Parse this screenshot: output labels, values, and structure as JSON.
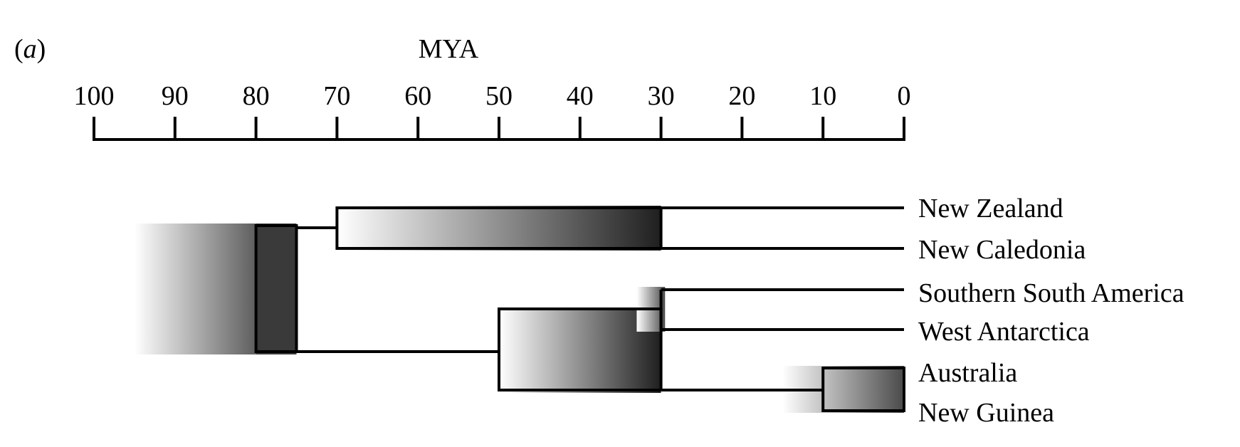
{
  "panel_label_open": "(",
  "panel_label_letter": "a",
  "panel_label_close": ")",
  "axis": {
    "title": "MYA",
    "ticks": [
      100,
      90,
      80,
      70,
      60,
      50,
      40,
      30,
      20,
      10,
      0
    ],
    "range": [
      100,
      0
    ]
  },
  "taxa": [
    "New Zealand",
    "New Caledonia",
    "Southern South America",
    "West Antarctica",
    "Australia",
    "New Guinea"
  ],
  "tree": {
    "root": {
      "age": 80,
      "ci_outer": [
        95,
        80
      ],
      "ci_inner": [
        80,
        75
      ]
    },
    "nodes": [
      {
        "id": "nz_nc",
        "age": 70,
        "ci": [
          70,
          30
        ],
        "children": [
          "New Zealand",
          "New Caledonia"
        ]
      },
      {
        "id": "ssa_wa",
        "age": 30,
        "ci": [
          33,
          29.5
        ],
        "children": [
          "Southern South America",
          "West Antarctica"
        ]
      },
      {
        "id": "aus_ng",
        "age": 10,
        "ci": [
          15,
          0
        ],
        "children": [
          "Australia",
          "New Guinea"
        ]
      },
      {
        "id": "southern",
        "age": 50,
        "ci": [
          50,
          30
        ],
        "children": [
          "ssa_wa",
          "aus_ng"
        ]
      }
    ]
  },
  "colors": {
    "line": "#000000",
    "bar_light": "#ffffff",
    "bar_dark": "#1f1f1f"
  }
}
